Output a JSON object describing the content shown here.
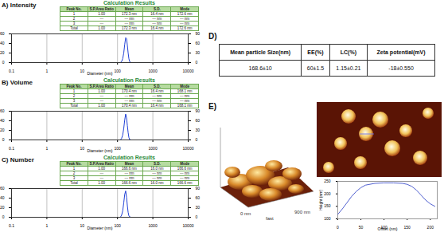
{
  "chart_data": [
    {
      "type": "line",
      "title": "A) Intensity",
      "subtitle": "Calculation Results",
      "results_table": {
        "columns": [
          "Peak No.",
          "S.P.Area Ratio",
          "Mean",
          "S.D.",
          "Mode"
        ],
        "rows": [
          [
            "1",
            "1.00",
            "172.3 nm",
            "16.4 nm",
            "172.6 nm"
          ],
          [
            "2",
            "---",
            "--- nm",
            "--- nm",
            "--- nm"
          ],
          [
            "3",
            "---",
            "--- nm",
            "--- nm",
            "--- nm"
          ],
          [
            "Total",
            "1.00",
            "172.3 nm",
            "16.4 nm",
            "172.6 nm"
          ]
        ]
      },
      "xlabel": "Diameter (nm)",
      "log": "x",
      "grid": true,
      "color": "#1f3fd6",
      "x": [
        120,
        130,
        140,
        150,
        160,
        170,
        180,
        190,
        200,
        210,
        220,
        240
      ],
      "values": [
        0,
        2,
        8,
        20,
        38,
        52,
        50,
        36,
        20,
        8,
        2,
        0
      ],
      "xlim": [
        0.1,
        10000
      ],
      "xticks": [
        0.1,
        1,
        10,
        100,
        1000,
        10000
      ],
      "ylim": [
        0,
        60
      ],
      "yticks": [
        0,
        20,
        40,
        60
      ],
      "y2lim": [
        0,
        90
      ],
      "y2ticks": [
        0,
        30,
        60,
        90
      ]
    },
    {
      "type": "line",
      "title": "B) Volume",
      "subtitle": "Calculation Results",
      "results_table": {
        "columns": [
          "Peak No.",
          "S.P.Area Ratio",
          "Mean",
          "S.D.",
          "Mode"
        ],
        "rows": [
          [
            "1",
            "1.00",
            "170.4 nm",
            "16.4 nm",
            "168.1 nm"
          ],
          [
            "2",
            "---",
            "--- nm",
            "--- nm",
            "--- nm"
          ],
          [
            "3",
            "---",
            "--- nm",
            "--- nm",
            "--- nm"
          ],
          [
            "Total",
            "1.00",
            "170.4 nm",
            "16.4 nm",
            "168.1 nm"
          ]
        ]
      },
      "xlabel": "Diameter (nm)",
      "log": "x",
      "grid": true,
      "color": "#1f3fd6",
      "x": [
        120,
        130,
        140,
        150,
        160,
        170,
        180,
        190,
        200,
        210,
        220,
        240
      ],
      "values": [
        0,
        3,
        10,
        24,
        42,
        54,
        46,
        30,
        15,
        5,
        1,
        0
      ],
      "xlim": [
        0.1,
        10000
      ],
      "xticks": [
        0.1,
        1,
        10,
        100,
        1000,
        10000
      ],
      "ylim": [
        0,
        60
      ],
      "yticks": [
        0,
        20,
        40,
        60
      ],
      "y2lim": [
        0,
        90
      ],
      "y2ticks": [
        0,
        30,
        60,
        90
      ]
    },
    {
      "type": "line",
      "title": "C) Number",
      "subtitle": "Calculation Results",
      "results_table": {
        "columns": [
          "Peak No.",
          "S.P.Area Ratio",
          "Mean",
          "S.D.",
          "Mode"
        ],
        "rows": [
          [
            "1",
            "1.00",
            "166.6 nm",
            "16.0 nm",
            "166.6 nm"
          ],
          [
            "2",
            "---",
            "--- nm",
            "--- nm",
            "--- nm"
          ],
          [
            "3",
            "---",
            "--- nm",
            "--- nm",
            "--- nm"
          ],
          [
            "Total",
            "1.00",
            "166.6 nm",
            "16.0 nm",
            "166.6 nm"
          ]
        ]
      },
      "xlabel": "Diameter (nm)",
      "log": "x",
      "grid": true,
      "color": "#1f3fd6",
      "x": [
        120,
        130,
        140,
        150,
        160,
        170,
        180,
        190,
        200,
        210,
        220,
        240
      ],
      "values": [
        0,
        4,
        13,
        30,
        48,
        55,
        42,
        24,
        10,
        3,
        1,
        0
      ],
      "xlim": [
        0.1,
        10000
      ],
      "xticks": [
        0.1,
        1,
        10,
        100,
        1000,
        10000
      ],
      "ylim": [
        0,
        60
      ],
      "yticks": [
        0,
        20,
        40,
        60
      ],
      "y2lim": [
        0,
        90
      ],
      "y2ticks": [
        0,
        30,
        60,
        90
      ]
    },
    {
      "type": "line",
      "xlabel": "Offset (nm)",
      "ylabel": "Height (nm)",
      "color": "#5060d0",
      "x": [
        0,
        10,
        20,
        30,
        40,
        50,
        60,
        80,
        100,
        120,
        140,
        150,
        160,
        170,
        180,
        190,
        200,
        210
      ],
      "values": [
        118,
        140,
        165,
        190,
        210,
        225,
        235,
        242,
        244,
        244,
        242,
        238,
        230,
        215,
        195,
        175,
        160,
        150
      ],
      "xlim": [
        0,
        215
      ],
      "xticks": [
        0,
        50,
        100,
        150,
        200
      ],
      "ylim": [
        100,
        250
      ],
      "yticks": [
        100,
        150,
        200,
        250
      ]
    }
  ],
  "table": {
    "label": "D)",
    "columns": [
      "Mean particle Size(nm)",
      "EE(%)",
      "LC(%)",
      "Zeta potential(mV)"
    ],
    "rows": [
      [
        "168.6±10",
        "60±1.5",
        "1.15±0.21",
        "-18±0.550"
      ]
    ]
  },
  "afm": {
    "label": "E)",
    "image_labels": [
      "0 nm",
      "fast",
      "900 nm"
    ]
  }
}
